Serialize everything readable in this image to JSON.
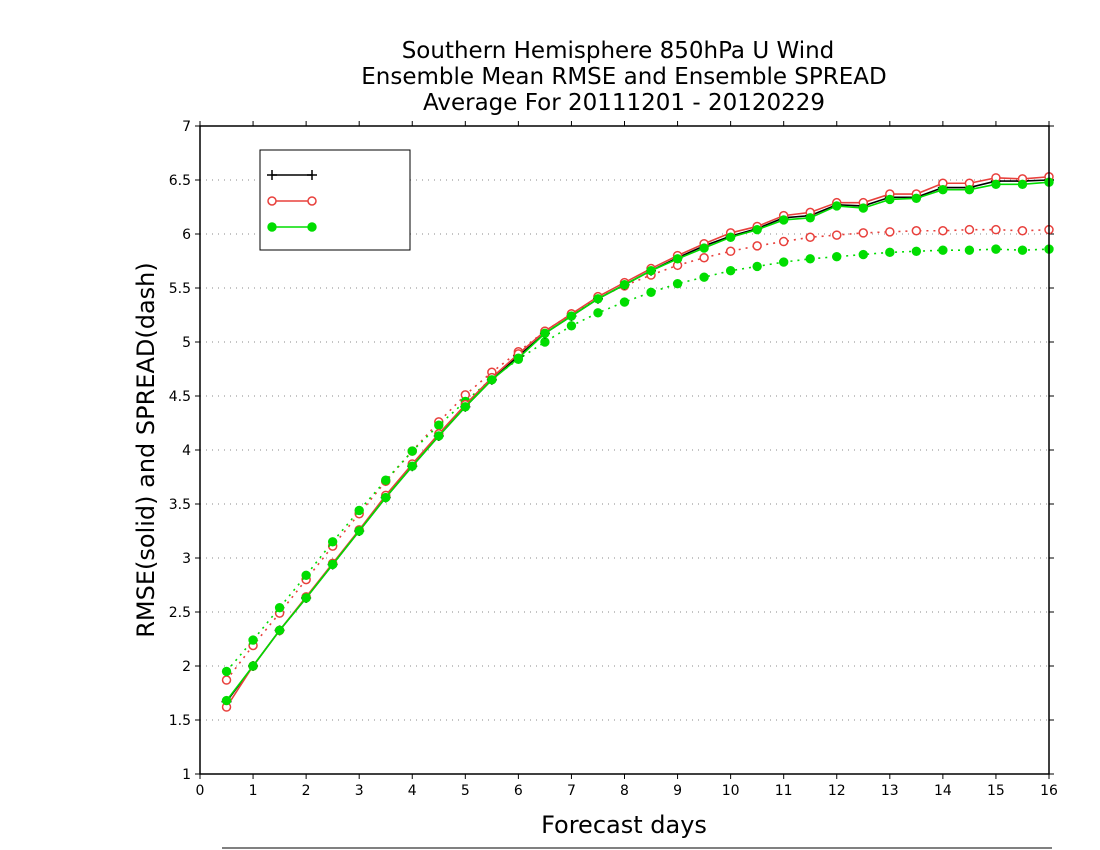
{
  "chart_data": {
    "type": "line",
    "title": [
      "Southern Hemisphere 850hPa U Wind",
      "Ensemble Mean RMSE and Ensemble SPREAD",
      "Average For 20111201 - 20120229"
    ],
    "xlabel": "Forecast days",
    "ylabel": "RMSE(solid) and SPREAD(dash)",
    "xlim": [
      0,
      16
    ],
    "ylim": [
      1,
      7
    ],
    "xticks": [
      0,
      1,
      2,
      3,
      4,
      5,
      6,
      7,
      8,
      9,
      10,
      11,
      12,
      13,
      14,
      15,
      16
    ],
    "yticks": [
      1,
      1.5,
      2,
      2.5,
      3,
      3.5,
      4,
      4.5,
      5,
      5.5,
      6,
      6.5,
      7
    ],
    "grid": "horizontal dotted",
    "legend_position": "top-left",
    "x": [
      0.5,
      1,
      1.5,
      2,
      2.5,
      3,
      3.5,
      4,
      4.5,
      5,
      5.5,
      6,
      6.5,
      7,
      7.5,
      8,
      8.5,
      9,
      9.5,
      10,
      10.5,
      11,
      11.5,
      12,
      12.5,
      13,
      13.5,
      14,
      14.5,
      15,
      15.5,
      16
    ],
    "series": [
      {
        "name": "",
        "color": "#000000",
        "marker": "plus",
        "style": "solid",
        "values": [
          1.67,
          2.0,
          2.33,
          2.63,
          2.94,
          3.25,
          3.56,
          3.85,
          4.13,
          4.4,
          4.65,
          4.87,
          5.08,
          5.24,
          5.4,
          5.53,
          5.66,
          5.78,
          5.89,
          5.98,
          6.05,
          6.15,
          6.17,
          6.27,
          6.26,
          6.34,
          6.34,
          6.43,
          6.43,
          6.49,
          6.49,
          6.5
        ]
      },
      {
        "name": "",
        "color": "#e8403c",
        "marker": "open-circle",
        "style": "solid",
        "values": [
          1.62,
          2.0,
          2.33,
          2.64,
          2.95,
          3.26,
          3.58,
          3.87,
          4.15,
          4.42,
          4.67,
          4.89,
          5.1,
          5.26,
          5.42,
          5.55,
          5.68,
          5.8,
          5.91,
          6.01,
          6.07,
          6.17,
          6.2,
          6.29,
          6.29,
          6.37,
          6.37,
          6.47,
          6.47,
          6.52,
          6.51,
          6.53
        ]
      },
      {
        "name": "",
        "color": "#00dd00",
        "marker": "filled-circle",
        "style": "solid",
        "values": [
          1.68,
          2.0,
          2.33,
          2.63,
          2.94,
          3.25,
          3.56,
          3.85,
          4.13,
          4.4,
          4.65,
          4.85,
          5.08,
          5.24,
          5.4,
          5.53,
          5.66,
          5.77,
          5.87,
          5.97,
          6.04,
          6.13,
          6.15,
          6.26,
          6.24,
          6.32,
          6.33,
          6.41,
          6.41,
          6.46,
          6.46,
          6.48
        ]
      },
      {
        "name": "",
        "color": "#e8403c",
        "marker": "open-circle",
        "style": "dotted",
        "values": [
          1.87,
          2.19,
          2.49,
          2.8,
          3.11,
          3.41,
          3.71,
          3.99,
          4.26,
          4.51,
          4.72,
          4.91,
          5.1,
          5.26,
          5.41,
          5.52,
          5.62,
          5.71,
          5.78,
          5.84,
          5.89,
          5.93,
          5.97,
          5.99,
          6.01,
          6.02,
          6.03,
          6.03,
          6.04,
          6.04,
          6.03,
          6.04
        ]
      },
      {
        "name": "",
        "color": "#00dd00",
        "marker": "filled-circle",
        "style": "dotted",
        "values": [
          1.95,
          2.24,
          2.54,
          2.84,
          3.15,
          3.44,
          3.72,
          3.99,
          4.23,
          4.45,
          4.66,
          4.84,
          5.0,
          5.15,
          5.27,
          5.37,
          5.46,
          5.54,
          5.6,
          5.66,
          5.7,
          5.74,
          5.77,
          5.79,
          5.81,
          5.83,
          5.84,
          5.85,
          5.85,
          5.86,
          5.85,
          5.86
        ]
      }
    ]
  }
}
